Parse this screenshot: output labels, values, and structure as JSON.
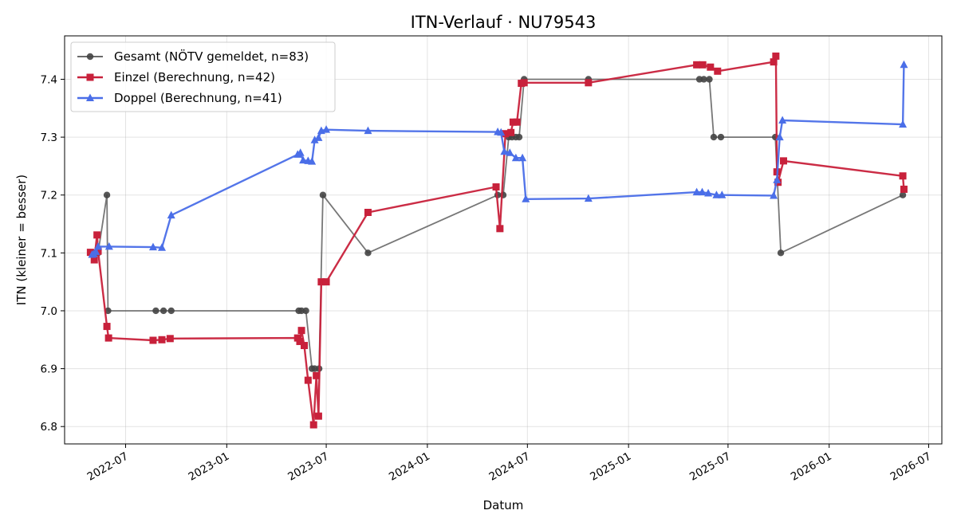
{
  "chart_data": {
    "type": "line",
    "title": "ITN-Verlauf · NU79543",
    "xlabel": "Datum",
    "ylabel": "ITN  (kleiner = besser)",
    "x_axis_type": "date",
    "xlim": [
      "2022-03-12",
      "2026-07-25"
    ],
    "ylim": [
      6.77,
      7.475
    ],
    "x_ticks": [
      "2022-07-01",
      "2023-01-01",
      "2023-07-01",
      "2024-01-01",
      "2024-07-01",
      "2025-01-01",
      "2025-07-01",
      "2026-01-01",
      "2026-07-01"
    ],
    "x_tick_labels": [
      "2022-07",
      "2023-01",
      "2023-07",
      "2024-01",
      "2024-07",
      "2025-01",
      "2025-07",
      "2026-01",
      "2026-07"
    ],
    "y_ticks": [
      6.8,
      6.9,
      7.0,
      7.1,
      7.2,
      7.3,
      7.4
    ],
    "y_tick_labels": [
      "6.8",
      "6.9",
      "7.0",
      "7.1",
      "7.2",
      "7.3",
      "7.4"
    ],
    "grid": true,
    "legend_position": "top-left",
    "series": [
      {
        "name": "Gesamt (NÖTV gemeldet, n=83)",
        "color": "#555555",
        "marker": "circle",
        "points": [
          [
            "2022-05-01",
            7.1
          ],
          [
            "2022-05-04",
            7.1
          ],
          [
            "2022-05-12",
            7.1
          ],
          [
            "2022-05-28",
            7.2
          ],
          [
            "2022-05-30",
            7.0
          ],
          [
            "2022-08-25",
            7.0
          ],
          [
            "2022-09-08",
            7.0
          ],
          [
            "2022-09-22",
            7.0
          ],
          [
            "2023-05-12",
            7.0
          ],
          [
            "2023-05-17",
            7.0
          ],
          [
            "2023-05-25",
            7.0
          ],
          [
            "2023-06-05",
            6.9
          ],
          [
            "2023-06-10",
            6.9
          ],
          [
            "2023-06-18",
            6.9
          ],
          [
            "2023-06-25",
            7.2
          ],
          [
            "2023-09-15",
            7.1
          ],
          [
            "2024-05-08",
            7.2
          ],
          [
            "2024-05-18",
            7.2
          ],
          [
            "2024-05-28",
            7.3
          ],
          [
            "2024-06-03",
            7.3
          ],
          [
            "2024-06-10",
            7.3
          ],
          [
            "2024-06-16",
            7.3
          ],
          [
            "2024-06-25",
            7.4
          ],
          [
            "2024-10-20",
            7.4
          ],
          [
            "2025-05-10",
            7.4
          ],
          [
            "2025-05-18",
            7.4
          ],
          [
            "2025-05-28",
            7.4
          ],
          [
            "2025-06-05",
            7.3
          ],
          [
            "2025-06-18",
            7.3
          ],
          [
            "2025-09-25",
            7.3
          ],
          [
            "2025-10-05",
            7.1
          ],
          [
            "2026-05-15",
            7.2
          ]
        ]
      },
      {
        "name": "Einzel (Berechnung, n=42)",
        "color": "#c8213b",
        "marker": "square",
        "points": [
          [
            "2022-04-28",
            7.101
          ],
          [
            "2022-05-05",
            7.088
          ],
          [
            "2022-05-10",
            7.131
          ],
          [
            "2022-05-12",
            7.103
          ],
          [
            "2022-05-28",
            6.973
          ],
          [
            "2022-05-31",
            6.953
          ],
          [
            "2022-08-20",
            6.949
          ],
          [
            "2022-09-05",
            6.95
          ],
          [
            "2022-09-20",
            6.952
          ],
          [
            "2023-05-10",
            6.953
          ],
          [
            "2023-05-14",
            6.947
          ],
          [
            "2023-05-17",
            6.966
          ],
          [
            "2023-05-22",
            6.94
          ],
          [
            "2023-05-29",
            6.88
          ],
          [
            "2023-06-08",
            6.803
          ],
          [
            "2023-06-13",
            6.888
          ],
          [
            "2023-06-17",
            6.818
          ],
          [
            "2023-06-22",
            7.05
          ],
          [
            "2023-07-01",
            7.05
          ],
          [
            "2023-09-15",
            7.17
          ],
          [
            "2024-05-05",
            7.214
          ],
          [
            "2024-05-12",
            7.142
          ],
          [
            "2024-05-22",
            7.306
          ],
          [
            "2024-06-01",
            7.308
          ],
          [
            "2024-06-05",
            7.326
          ],
          [
            "2024-06-12",
            7.326
          ],
          [
            "2024-06-20",
            7.393
          ],
          [
            "2024-06-25",
            7.394
          ],
          [
            "2024-10-20",
            7.394
          ],
          [
            "2025-05-05",
            7.425
          ],
          [
            "2025-05-16",
            7.425
          ],
          [
            "2025-05-30",
            7.421
          ],
          [
            "2025-06-12",
            7.414
          ],
          [
            "2025-09-22",
            7.43
          ],
          [
            "2025-09-26",
            7.44
          ],
          [
            "2025-09-28",
            7.24
          ],
          [
            "2025-09-30",
            7.222
          ],
          [
            "2025-10-10",
            7.259
          ],
          [
            "2026-05-15",
            7.233
          ],
          [
            "2026-05-17",
            7.21
          ]
        ]
      },
      {
        "name": "Doppel (Berechnung, n=41)",
        "color": "#4a6ee8",
        "marker": "triangle",
        "points": [
          [
            "2022-05-01",
            7.097
          ],
          [
            "2022-05-04",
            7.098
          ],
          [
            "2022-05-08",
            7.102
          ],
          [
            "2022-05-12",
            7.111
          ],
          [
            "2022-06-01",
            7.111
          ],
          [
            "2022-08-20",
            7.11
          ],
          [
            "2022-09-05",
            7.109
          ],
          [
            "2022-09-22",
            7.165
          ],
          [
            "2023-05-10",
            7.27
          ],
          [
            "2023-05-15",
            7.273
          ],
          [
            "2023-05-20",
            7.26
          ],
          [
            "2023-05-29",
            7.259
          ],
          [
            "2023-06-05",
            7.258
          ],
          [
            "2023-06-10",
            7.295
          ],
          [
            "2023-06-17",
            7.299
          ],
          [
            "2023-06-22",
            7.311
          ],
          [
            "2023-07-01",
            7.313
          ],
          [
            "2023-09-15",
            7.311
          ],
          [
            "2024-05-08",
            7.309
          ],
          [
            "2024-05-14",
            7.308
          ],
          [
            "2024-05-20",
            7.275
          ],
          [
            "2024-05-30",
            7.273
          ],
          [
            "2024-06-10",
            7.264
          ],
          [
            "2024-06-22",
            7.264
          ],
          [
            "2024-06-28",
            7.193
          ],
          [
            "2024-10-20",
            7.194
          ],
          [
            "2025-05-05",
            7.205
          ],
          [
            "2025-05-15",
            7.205
          ],
          [
            "2025-05-26",
            7.203
          ],
          [
            "2025-06-10",
            7.2
          ],
          [
            "2025-06-20",
            7.2
          ],
          [
            "2025-09-22",
            7.199
          ],
          [
            "2025-09-28",
            7.226
          ],
          [
            "2025-10-03",
            7.3
          ],
          [
            "2025-10-08",
            7.329
          ],
          [
            "2026-05-15",
            7.322
          ],
          [
            "2026-05-17",
            7.425
          ]
        ]
      }
    ]
  }
}
